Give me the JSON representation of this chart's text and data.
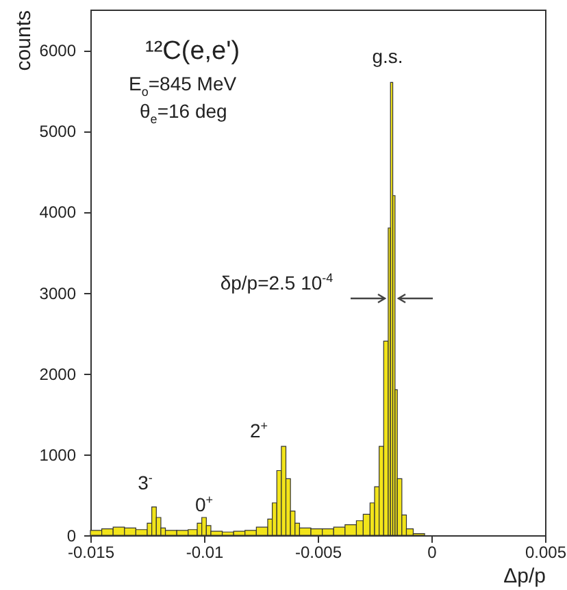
{
  "chart_data": {
    "type": "histogram",
    "title": "¹²C(e,e')",
    "xlabel": "Δp/p",
    "ylabel": "counts",
    "color": "#f2e41a",
    "bins": [
      -0.015,
      -0.0145,
      -0.014,
      -0.0135,
      -0.013,
      -0.0125,
      -0.0123,
      -0.0121,
      -0.0119,
      -0.0117,
      -0.0112,
      -0.0107,
      -0.0103,
      -0.0101,
      -0.0099,
      -0.0097,
      -0.0092,
      -0.0087,
      -0.0082,
      -0.0077,
      -0.0072,
      -0.007,
      -0.0068,
      -0.0066,
      -0.0064,
      -0.0062,
      -0.006,
      -0.0058,
      -0.0053,
      -0.0048,
      -0.0043,
      -0.0038,
      -0.0033,
      -0.003,
      -0.0027,
      -0.0025,
      -0.0023,
      -0.0021,
      -0.0019,
      -0.0018,
      -0.0017,
      -0.0016,
      -0.0015,
      -0.0013,
      -0.0011,
      -0.0008,
      -0.0003
    ],
    "values": [
      60,
      80,
      100,
      90,
      70,
      150,
      350,
      220,
      90,
      60,
      60,
      70,
      150,
      220,
      120,
      50,
      40,
      50,
      60,
      100,
      200,
      400,
      800,
      1100,
      700,
      300,
      150,
      90,
      80,
      80,
      100,
      130,
      180,
      260,
      400,
      600,
      1100,
      2400,
      3800,
      5600,
      4200,
      1800,
      700,
      250,
      80,
      20
    ],
    "xlim": [
      -0.015,
      0.005
    ],
    "ylim": [
      0,
      6500
    ],
    "xticks": [
      -0.015,
      -0.01,
      -0.005,
      0,
      0.005
    ],
    "yticks": [
      0,
      1000,
      2000,
      3000,
      4000,
      5000,
      6000
    ],
    "annotations": [
      "E$_{o}$=845 MeV",
      "θ$_{e}$=16 deg",
      "δp/p=2.5 10$^{-4}$",
      "g.s.",
      "3$^{-}$",
      "0$^{+}$",
      "2$^{+}$"
    ]
  }
}
